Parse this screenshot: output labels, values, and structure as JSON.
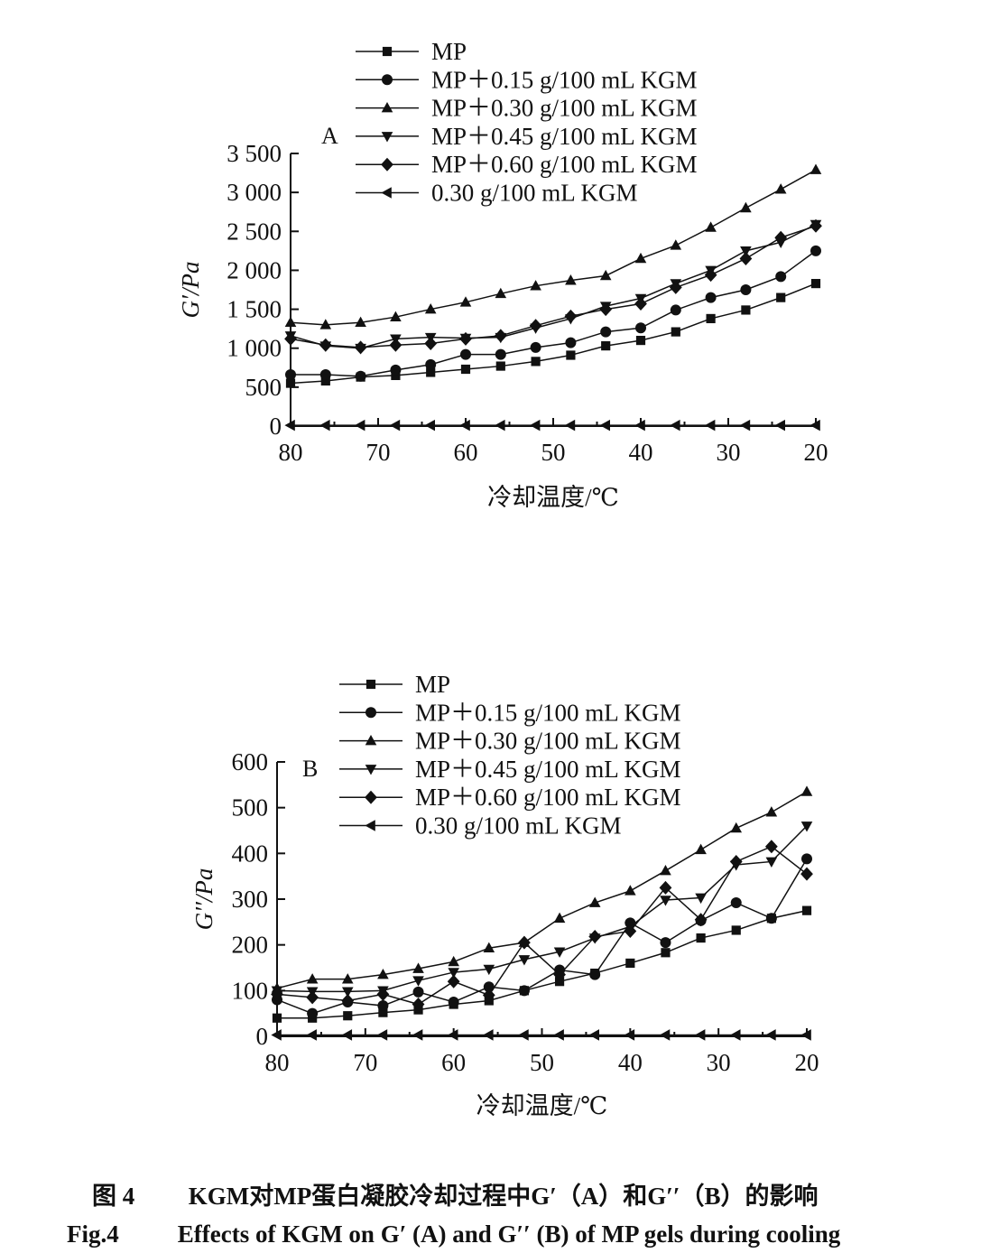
{
  "chart_data": [
    {
      "type": "line",
      "panel_label": "A",
      "ylabel": "G′/Pa",
      "xlabel": "冷却温度/℃",
      "xlim": [
        80,
        20
      ],
      "ylim": [
        0,
        3500
      ],
      "x_ticks": [
        "80",
        "70",
        "60",
        "50",
        "40",
        "30",
        "20"
      ],
      "y_ticks": [
        "0",
        "500",
        "1 000",
        "1 500",
        "2 000",
        "2 500",
        "3 000",
        "3 500"
      ],
      "x": [
        80,
        76,
        72,
        68,
        64,
        60,
        56,
        52,
        48,
        44,
        40,
        36,
        32,
        28,
        24,
        20
      ],
      "legend_position": "top",
      "series": [
        {
          "name": "MP",
          "marker": "square",
          "values": [
            550,
            580,
            630,
            650,
            690,
            730,
            770,
            830,
            910,
            1030,
            1100,
            1210,
            1380,
            1490,
            1650,
            1830
          ]
        },
        {
          "name": "MP＋0.15 g/100 mL KGM",
          "marker": "circle",
          "values": [
            660,
            660,
            640,
            720,
            790,
            920,
            920,
            1010,
            1070,
            1210,
            1260,
            1490,
            1650,
            1750,
            1920,
            2250
          ]
        },
        {
          "name": "MP＋0.30 g/100 mL KGM",
          "marker": "triangle-up",
          "values": [
            1330,
            1300,
            1330,
            1400,
            1500,
            1590,
            1700,
            1800,
            1870,
            1930,
            2150,
            2320,
            2550,
            2800,
            3040,
            3290
          ]
        },
        {
          "name": "MP＋0.45 g/100 mL KGM",
          "marker": "triangle-down",
          "values": [
            1160,
            1030,
            1000,
            1120,
            1140,
            1130,
            1140,
            1260,
            1380,
            1540,
            1640,
            1830,
            2000,
            2250,
            2360,
            2590
          ]
        },
        {
          "name": "MP＋0.60 g/100 mL KGM",
          "marker": "diamond",
          "values": [
            1120,
            1040,
            1010,
            1040,
            1060,
            1120,
            1160,
            1290,
            1410,
            1500,
            1570,
            1780,
            1940,
            2150,
            2420,
            2570
          ]
        },
        {
          "name": "0.30 g/100 mL KGM",
          "marker": "triangle-left",
          "values": [
            10,
            10,
            10,
            10,
            10,
            10,
            10,
            10,
            10,
            10,
            10,
            10,
            10,
            10,
            10,
            10
          ]
        }
      ]
    },
    {
      "type": "line",
      "panel_label": "B",
      "ylabel": "G′′/Pa",
      "xlabel": "冷却温度/℃",
      "xlim": [
        80,
        20
      ],
      "ylim": [
        0,
        600
      ],
      "x_ticks": [
        "80",
        "70",
        "60",
        "50",
        "40",
        "30",
        "20"
      ],
      "y_ticks": [
        "0",
        "100",
        "200",
        "300",
        "400",
        "500",
        "600"
      ],
      "x": [
        80,
        76,
        72,
        68,
        64,
        60,
        56,
        52,
        48,
        44,
        40,
        36,
        32,
        28,
        24,
        20
      ],
      "legend_position": "top",
      "series": [
        {
          "name": "MP",
          "marker": "square",
          "values": [
            40,
            40,
            45,
            52,
            58,
            70,
            78,
            100,
            120,
            138,
            160,
            183,
            215,
            232,
            258,
            275
          ]
        },
        {
          "name": "MP＋0.15 g/100 mL KGM",
          "marker": "circle",
          "values": [
            80,
            50,
            75,
            67,
            97,
            75,
            108,
            100,
            145,
            135,
            248,
            205,
            253,
            292,
            258,
            388
          ]
        },
        {
          "name": "MP＋0.30 g/100 mL KGM",
          "marker": "triangle-up",
          "values": [
            105,
            125,
            125,
            135,
            148,
            163,
            193,
            205,
            258,
            292,
            318,
            362,
            408,
            455,
            490,
            535
          ]
        },
        {
          "name": "MP＋0.45 g/100 mL KGM",
          "marker": "triangle-down",
          "values": [
            100,
            98,
            98,
            100,
            122,
            140,
            147,
            168,
            185,
            215,
            240,
            298,
            303,
            375,
            382,
            460
          ]
        },
        {
          "name": "MP＋0.60 g/100 mL KGM",
          "marker": "diamond",
          "values": [
            92,
            85,
            78,
            92,
            70,
            120,
            90,
            205,
            135,
            218,
            230,
            325,
            255,
            382,
            415,
            355
          ]
        },
        {
          "name": "0.30 g/100 mL KGM",
          "marker": "triangle-left",
          "values": [
            3,
            3,
            3,
            3,
            3,
            3,
            3,
            3,
            3,
            3,
            3,
            3,
            3,
            3,
            3,
            3
          ]
        }
      ]
    }
  ],
  "caption": {
    "cn_label": "图 4",
    "cn_text": "KGM对MP蛋白凝胶冷却过程中G′（A）和G′′（B）的影响",
    "en_label": "Fig.4",
    "en_text": "Effects of KGM on G′ (A) and G′′ (B) of MP gels during cooling"
  }
}
